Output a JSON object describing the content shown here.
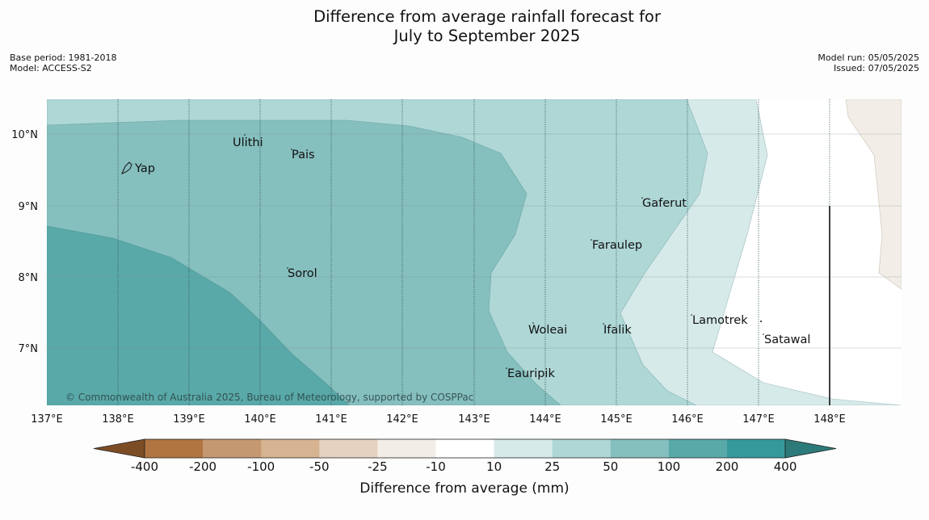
{
  "title": {
    "line1": "Difference from average rainfall forecast for",
    "line2": "July to September 2025"
  },
  "meta": {
    "base_period": "Base period: 1981-2018",
    "model": "Model: ACCESS-S2",
    "model_run": "Model run: 05/05/2025",
    "issued": "Issued: 07/05/2025"
  },
  "map": {
    "lon_labels": [
      "137°E",
      "138°E",
      "139°E",
      "140°E",
      "141°E",
      "142°E",
      "143°E",
      "144°E",
      "145°E",
      "146°E",
      "147°E",
      "148°E"
    ],
    "lat_labels": [
      "10°N",
      "9°N",
      "8°N",
      "7°N"
    ],
    "places": [
      {
        "name": "Ulithi"
      },
      {
        "name": "Pais"
      },
      {
        "name": "Yap"
      },
      {
        "name": "Gaferut"
      },
      {
        "name": "Faraulep"
      },
      {
        "name": "Sorol"
      },
      {
        "name": "Lamotrek"
      },
      {
        "name": "Woleai"
      },
      {
        "name": "Ifalik"
      },
      {
        "name": "Satawal"
      },
      {
        "name": "Eauripik"
      }
    ],
    "copyright": "© Commonwealth of Australia 2025, Bureau of Meteorology, supported by COSPPac"
  },
  "legend": {
    "tick_labels": [
      "-400",
      "-200",
      "-100",
      "-50",
      "-25",
      "-10",
      "10",
      "25",
      "50",
      "100",
      "200",
      "400"
    ],
    "colors": [
      "#7c4d25",
      "#b07540",
      "#c49870",
      "#d6b391",
      "#e5d2c0",
      "#f2eee7",
      "#ffffff",
      "#d6eae9",
      "#aed7d6",
      "#85bfbe",
      "#5aa9a9",
      "#35999a",
      "#2d7a7a"
    ],
    "label": "Difference from average (mm)"
  }
}
